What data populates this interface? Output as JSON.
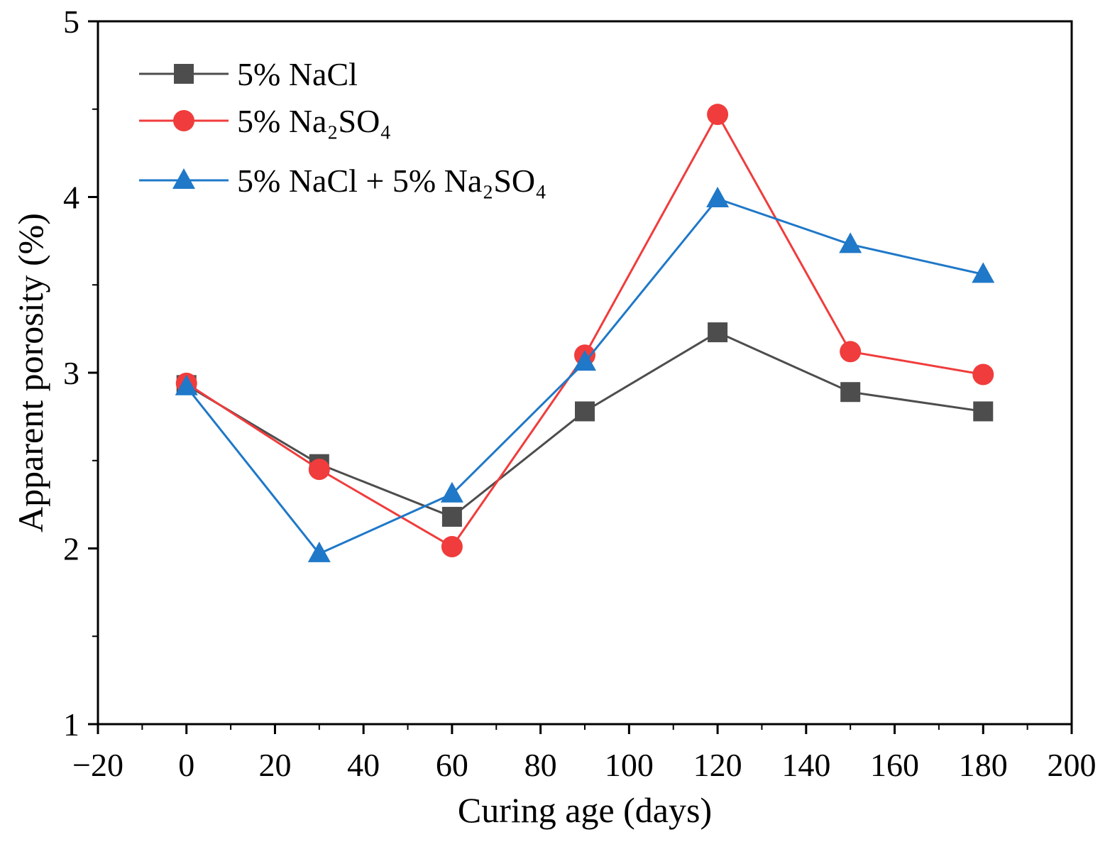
{
  "chart_data": {
    "type": "line",
    "title": "",
    "xlabel": "Curing age (days)",
    "ylabel": "Apparent porosity (%)",
    "xlim": [
      -20,
      200
    ],
    "ylim": [
      1,
      5
    ],
    "xticks": [
      -20,
      0,
      20,
      40,
      60,
      80,
      100,
      120,
      140,
      160,
      180,
      200
    ],
    "xtick_labels": [
      "−20",
      "0",
      "20",
      "40",
      "60",
      "80",
      "100",
      "120",
      "140",
      "160",
      "180",
      "200"
    ],
    "yticks": [
      1,
      2,
      3,
      4,
      5
    ],
    "ytick_labels": [
      "1",
      "2",
      "3",
      "4",
      "5"
    ],
    "grid": false,
    "legend_position": "top-left",
    "x": [
      0,
      30,
      60,
      90,
      120,
      150,
      180
    ],
    "series": [
      {
        "name": "5% NaCl",
        "legend_text": "5% NaCl",
        "color": "#4d4d4d",
        "marker": "square",
        "values": [
          2.93,
          2.48,
          2.18,
          2.78,
          3.23,
          2.89,
          2.78
        ]
      },
      {
        "name": "5% Na2SO4",
        "legend_text": "5% Na₂SO₄",
        "color": "#f03c3c",
        "marker": "circle",
        "values": [
          2.94,
          2.45,
          2.01,
          3.1,
          4.47,
          3.12,
          2.99
        ]
      },
      {
        "name": "5% NaCl + 5% Na2SO4",
        "legend_text": "5% NaCl + 5% Na₂SO₄",
        "color": "#1f78c8",
        "marker": "triangle",
        "values": [
          2.92,
          1.97,
          2.31,
          3.06,
          3.99,
          3.73,
          3.56
        ]
      }
    ]
  }
}
